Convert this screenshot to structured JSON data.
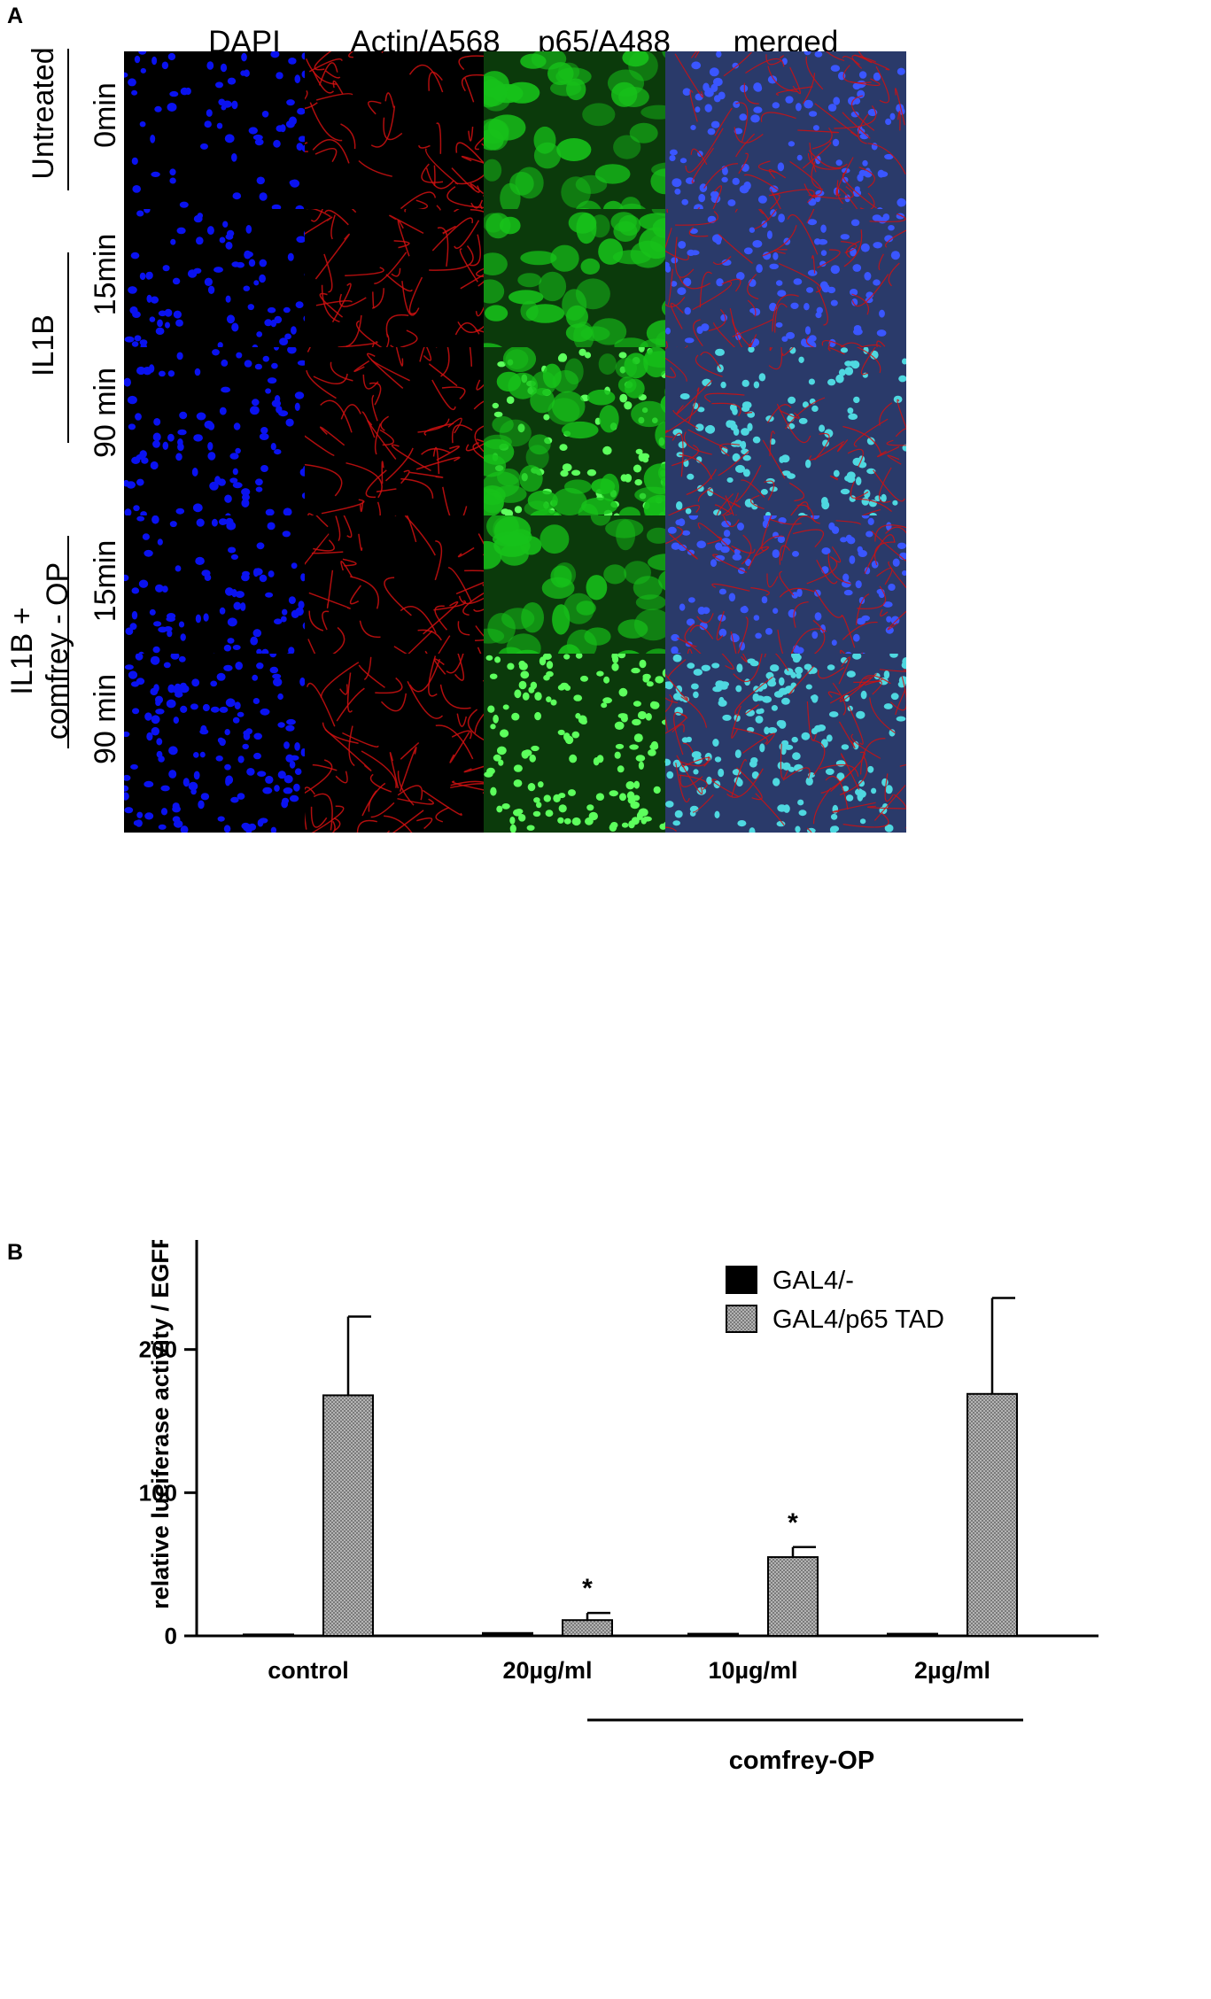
{
  "figure": {
    "panel_a_letter": "A",
    "panel_b_letter": "B",
    "columns": [
      "DAPI",
      "Actin/A568",
      "p65/A488",
      "merged"
    ],
    "groups": [
      {
        "label": "Untreated",
        "rows": [
          "0min"
        ]
      },
      {
        "label": "IL1B",
        "rows": [
          "15min",
          "90 min"
        ]
      },
      {
        "label_line1": "IL1B +",
        "label_line2": "comfrey - OP",
        "rows": [
          "15min",
          "90 min"
        ]
      }
    ],
    "channel_colors": {
      "dapi": "#0a12f0",
      "actin": "#d01010",
      "p65": "#17c21a",
      "merged_bg": "#2a3a6a"
    }
  },
  "chart_data": {
    "type": "bar",
    "categories": [
      "control",
      "20µg/ml",
      "10µg/ml",
      "2µg/ml"
    ],
    "group_label": "comfrey-OP",
    "ylabel": "relative luciferase activity / EGFP",
    "xlabel": "",
    "ylim": [
      0,
      300
    ],
    "yticks": [
      0,
      100,
      200,
      300
    ],
    "legend_position": "top-right",
    "series": [
      {
        "name": "GAL4/-",
        "color": "#000000",
        "values": [
          1,
          2,
          1.5,
          1.5
        ],
        "errors": [
          0,
          0,
          0,
          0
        ]
      },
      {
        "name": "GAL4/p65 TAD",
        "color": "#9a9a9a",
        "values": [
          168,
          11,
          55,
          169
        ],
        "errors": [
          55,
          5,
          7,
          67
        ]
      }
    ],
    "annotations": [
      {
        "category": "20µg/ml",
        "series": "GAL4/p65 TAD",
        "text": "*"
      },
      {
        "category": "10µg/ml",
        "series": "GAL4/p65 TAD",
        "text": "*"
      }
    ]
  }
}
